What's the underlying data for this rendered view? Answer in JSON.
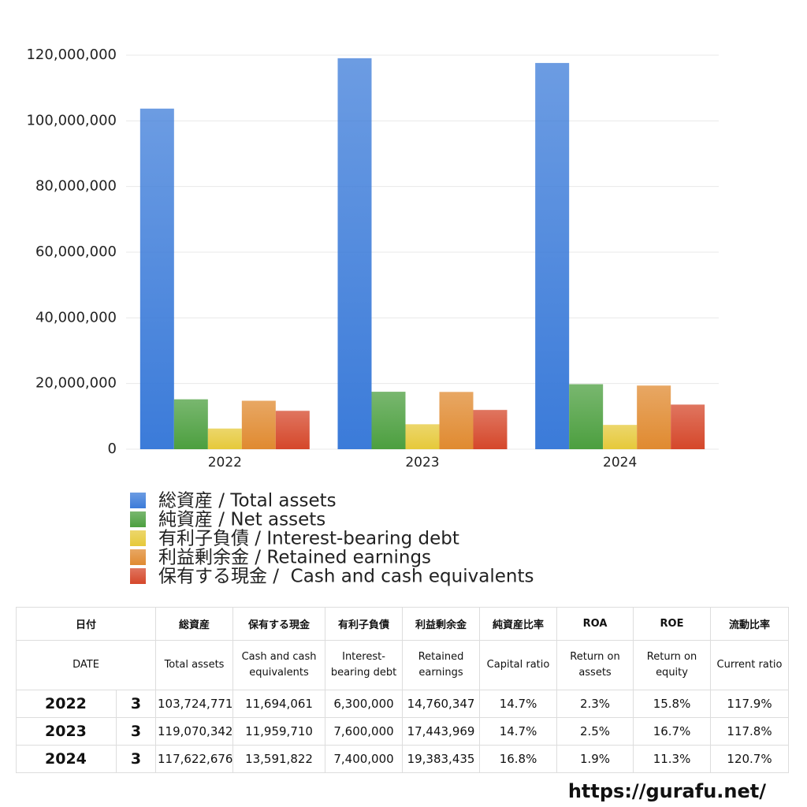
{
  "chart_data": {
    "type": "bar",
    "categories": [
      "2022",
      "2023",
      "2024"
    ],
    "series": [
      {
        "name": "総資産 / Total assets",
        "color": "#3b7bd9",
        "values": [
          103724771,
          119070342,
          117622676
        ]
      },
      {
        "name": "純資産 / Net assets",
        "color": "#4c9f3f",
        "values": [
          15200000,
          17500000,
          19800000
        ]
      },
      {
        "name": "有利子負債 / Interest-bearing debt",
        "color": "#e6c93a",
        "values": [
          6300000,
          7600000,
          7400000
        ]
      },
      {
        "name": "利益剰余金 / Retained earnings",
        "color": "#e08a30",
        "values": [
          14760347,
          17443969,
          19383435
        ]
      },
      {
        "name": "保有する現金 /  Cash and cash equivalents",
        "color": "#d5472a",
        "values": [
          11694061,
          11959710,
          13591822
        ]
      }
    ],
    "ylim": [
      0,
      120000000
    ],
    "yticks": [
      0,
      {
        "value": 20000000,
        "label": "20,000,000"
      },
      {
        "value": 40000000,
        "label": "40,000,000"
      },
      {
        "value": 60000000,
        "label": "60,000,000"
      },
      {
        "value": 80000000,
        "label": "80,000,000"
      },
      {
        "value": 100000000,
        "label": "100,000,000"
      },
      {
        "value": 120000000,
        "label": "120,000,000"
      }
    ],
    "grid": true
  },
  "table": {
    "header_jp": [
      "日付",
      "総資産",
      "保有する現金",
      "有利子負債",
      "利益剰余金",
      "純資産比率",
      "ROA",
      "ROE",
      "流動比率"
    ],
    "header_en": [
      "DATE",
      "Total assets",
      "Cash and cash equivalents",
      "Interest-bearing debt",
      "Retained earnings",
      "Capital ratio",
      "Return on assets",
      "Return on equity",
      "Current ratio"
    ],
    "rows": [
      [
        "2022",
        "3",
        "103,724,771",
        "11,694,061",
        "6,300,000",
        "14,760,347",
        "14.7%",
        "2.3%",
        "15.8%",
        "117.9%"
      ],
      [
        "2023",
        "3",
        "119,070,342",
        "11,959,710",
        "7,600,000",
        "17,443,969",
        "14.7%",
        "2.5%",
        "16.7%",
        "117.8%"
      ],
      [
        "2024",
        "3",
        "117,622,676",
        "13,591,822",
        "7,400,000",
        "19,383,435",
        "16.8%",
        "1.9%",
        "11.3%",
        "120.7%"
      ]
    ]
  },
  "footer": "https://gurafu.net/"
}
